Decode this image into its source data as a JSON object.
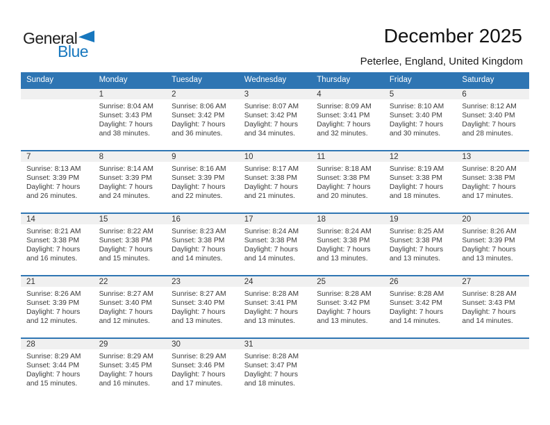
{
  "logo": {
    "line1": "General",
    "line2": "Blue"
  },
  "title": "December 2025",
  "location": "Peterlee, England, United Kingdom",
  "weekday_headers": [
    "Sunday",
    "Monday",
    "Tuesday",
    "Wednesday",
    "Thursday",
    "Friday",
    "Saturday"
  ],
  "colors": {
    "header_blue": "#2E75B3",
    "row_divider_blue": "#2E75B3",
    "day_band_gray": "#F0F0F0",
    "logo_blue": "#1777BE",
    "weekday_text": "#FFFFFF",
    "body_text": "#3A3A3A"
  },
  "weeks": [
    [
      {
        "day": "",
        "lines": []
      },
      {
        "day": "1",
        "lines": [
          "Sunrise: 8:04 AM",
          "Sunset: 3:43 PM",
          "Daylight: 7 hours",
          "and 38 minutes."
        ]
      },
      {
        "day": "2",
        "lines": [
          "Sunrise: 8:06 AM",
          "Sunset: 3:42 PM",
          "Daylight: 7 hours",
          "and 36 minutes."
        ]
      },
      {
        "day": "3",
        "lines": [
          "Sunrise: 8:07 AM",
          "Sunset: 3:42 PM",
          "Daylight: 7 hours",
          "and 34 minutes."
        ]
      },
      {
        "day": "4",
        "lines": [
          "Sunrise: 8:09 AM",
          "Sunset: 3:41 PM",
          "Daylight: 7 hours",
          "and 32 minutes."
        ]
      },
      {
        "day": "5",
        "lines": [
          "Sunrise: 8:10 AM",
          "Sunset: 3:40 PM",
          "Daylight: 7 hours",
          "and 30 minutes."
        ]
      },
      {
        "day": "6",
        "lines": [
          "Sunrise: 8:12 AM",
          "Sunset: 3:40 PM",
          "Daylight: 7 hours",
          "and 28 minutes."
        ]
      }
    ],
    [
      {
        "day": "7",
        "lines": [
          "Sunrise: 8:13 AM",
          "Sunset: 3:39 PM",
          "Daylight: 7 hours",
          "and 26 minutes."
        ]
      },
      {
        "day": "8",
        "lines": [
          "Sunrise: 8:14 AM",
          "Sunset: 3:39 PM",
          "Daylight: 7 hours",
          "and 24 minutes."
        ]
      },
      {
        "day": "9",
        "lines": [
          "Sunrise: 8:16 AM",
          "Sunset: 3:39 PM",
          "Daylight: 7 hours",
          "and 22 minutes."
        ]
      },
      {
        "day": "10",
        "lines": [
          "Sunrise: 8:17 AM",
          "Sunset: 3:38 PM",
          "Daylight: 7 hours",
          "and 21 minutes."
        ]
      },
      {
        "day": "11",
        "lines": [
          "Sunrise: 8:18 AM",
          "Sunset: 3:38 PM",
          "Daylight: 7 hours",
          "and 20 minutes."
        ]
      },
      {
        "day": "12",
        "lines": [
          "Sunrise: 8:19 AM",
          "Sunset: 3:38 PM",
          "Daylight: 7 hours",
          "and 18 minutes."
        ]
      },
      {
        "day": "13",
        "lines": [
          "Sunrise: 8:20 AM",
          "Sunset: 3:38 PM",
          "Daylight: 7 hours",
          "and 17 minutes."
        ]
      }
    ],
    [
      {
        "day": "14",
        "lines": [
          "Sunrise: 8:21 AM",
          "Sunset: 3:38 PM",
          "Daylight: 7 hours",
          "and 16 minutes."
        ]
      },
      {
        "day": "15",
        "lines": [
          "Sunrise: 8:22 AM",
          "Sunset: 3:38 PM",
          "Daylight: 7 hours",
          "and 15 minutes."
        ]
      },
      {
        "day": "16",
        "lines": [
          "Sunrise: 8:23 AM",
          "Sunset: 3:38 PM",
          "Daylight: 7 hours",
          "and 14 minutes."
        ]
      },
      {
        "day": "17",
        "lines": [
          "Sunrise: 8:24 AM",
          "Sunset: 3:38 PM",
          "Daylight: 7 hours",
          "and 14 minutes."
        ]
      },
      {
        "day": "18",
        "lines": [
          "Sunrise: 8:24 AM",
          "Sunset: 3:38 PM",
          "Daylight: 7 hours",
          "and 13 minutes."
        ]
      },
      {
        "day": "19",
        "lines": [
          "Sunrise: 8:25 AM",
          "Sunset: 3:38 PM",
          "Daylight: 7 hours",
          "and 13 minutes."
        ]
      },
      {
        "day": "20",
        "lines": [
          "Sunrise: 8:26 AM",
          "Sunset: 3:39 PM",
          "Daylight: 7 hours",
          "and 13 minutes."
        ]
      }
    ],
    [
      {
        "day": "21",
        "lines": [
          "Sunrise: 8:26 AM",
          "Sunset: 3:39 PM",
          "Daylight: 7 hours",
          "and 12 minutes."
        ]
      },
      {
        "day": "22",
        "lines": [
          "Sunrise: 8:27 AM",
          "Sunset: 3:40 PM",
          "Daylight: 7 hours",
          "and 12 minutes."
        ]
      },
      {
        "day": "23",
        "lines": [
          "Sunrise: 8:27 AM",
          "Sunset: 3:40 PM",
          "Daylight: 7 hours",
          "and 13 minutes."
        ]
      },
      {
        "day": "24",
        "lines": [
          "Sunrise: 8:28 AM",
          "Sunset: 3:41 PM",
          "Daylight: 7 hours",
          "and 13 minutes."
        ]
      },
      {
        "day": "25",
        "lines": [
          "Sunrise: 8:28 AM",
          "Sunset: 3:42 PM",
          "Daylight: 7 hours",
          "and 13 minutes."
        ]
      },
      {
        "day": "26",
        "lines": [
          "Sunrise: 8:28 AM",
          "Sunset: 3:42 PM",
          "Daylight: 7 hours",
          "and 14 minutes."
        ]
      },
      {
        "day": "27",
        "lines": [
          "Sunrise: 8:28 AM",
          "Sunset: 3:43 PM",
          "Daylight: 7 hours",
          "and 14 minutes."
        ]
      }
    ],
    [
      {
        "day": "28",
        "lines": [
          "Sunrise: 8:29 AM",
          "Sunset: 3:44 PM",
          "Daylight: 7 hours",
          "and 15 minutes."
        ]
      },
      {
        "day": "29",
        "lines": [
          "Sunrise: 8:29 AM",
          "Sunset: 3:45 PM",
          "Daylight: 7 hours",
          "and 16 minutes."
        ]
      },
      {
        "day": "30",
        "lines": [
          "Sunrise: 8:29 AM",
          "Sunset: 3:46 PM",
          "Daylight: 7 hours",
          "and 17 minutes."
        ]
      },
      {
        "day": "31",
        "lines": [
          "Sunrise: 8:28 AM",
          "Sunset: 3:47 PM",
          "Daylight: 7 hours",
          "and 18 minutes."
        ]
      },
      {
        "day": "",
        "lines": []
      },
      {
        "day": "",
        "lines": []
      },
      {
        "day": "",
        "lines": []
      }
    ]
  ]
}
